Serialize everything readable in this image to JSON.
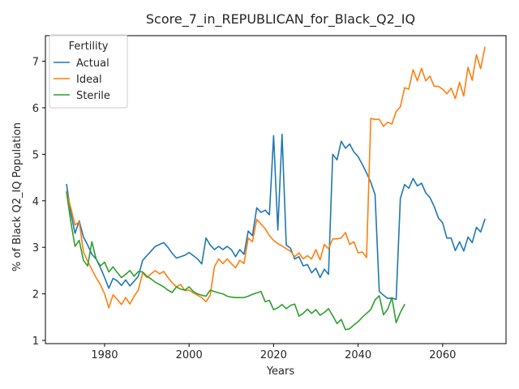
{
  "chart_data": {
    "type": "line",
    "title": "Score_7_in_REPUBLICAN_for_Black_Q2_IQ",
    "xlabel": "Years",
    "ylabel": "% of Black Q2_IQ Population",
    "xlim": [
      1966,
      2075
    ],
    "ylim": [
      0.93,
      7.55
    ],
    "xticks": [
      1980,
      2000,
      2020,
      2040,
      2060
    ],
    "yticks": [
      1,
      2,
      3,
      4,
      5,
      6,
      7
    ],
    "grid": false,
    "legend": {
      "title": "Fertility",
      "position": "top-left"
    },
    "series": [
      {
        "name": "Actual",
        "color": "#1f77b4",
        "x": [
          1971,
          1972,
          1973,
          1974,
          1975,
          1976,
          1977,
          1978,
          1979,
          1980,
          1981,
          1982,
          1983,
          1984,
          1985,
          1986,
          1987,
          1988,
          1989,
          1990,
          1991,
          1992,
          1993,
          1994,
          1995,
          1996,
          1997,
          1998,
          1999,
          2000,
          2001,
          2002,
          2003,
          2004,
          2005,
          2006,
          2007,
          2008,
          2009,
          2010,
          2011,
          2012,
          2013,
          2014,
          2015,
          2016,
          2017,
          2018,
          2019,
          2020,
          2021,
          2022,
          2023,
          2024,
          2025,
          2026,
          2027,
          2028,
          2029,
          2030,
          2031,
          2032,
          2033,
          2034,
          2035,
          2036,
          2037,
          2038,
          2039,
          2040,
          2041,
          2042,
          2043,
          2044,
          2045,
          2046,
          2047,
          2048,
          2049,
          2050,
          2051,
          2052,
          2053,
          2054,
          2055,
          2056,
          2057,
          2058,
          2059,
          2060,
          2061,
          2062,
          2063,
          2064,
          2065,
          2066,
          2067,
          2068,
          2069,
          2070
        ],
        "y": [
          4.35,
          3.75,
          3.3,
          3.57,
          3.22,
          3.05,
          2.85,
          2.75,
          2.57,
          2.35,
          2.12,
          2.33,
          2.28,
          2.18,
          2.3,
          2.17,
          2.27,
          2.38,
          2.72,
          2.82,
          2.92,
          3.02,
          3.06,
          3.1,
          3.0,
          2.87,
          2.77,
          2.8,
          2.83,
          2.89,
          2.82,
          2.75,
          2.64,
          3.2,
          3.05,
          2.95,
          3.02,
          2.95,
          3.02,
          2.95,
          2.8,
          2.95,
          2.85,
          3.35,
          3.25,
          3.85,
          3.75,
          3.8,
          3.7,
          5.4,
          3.37,
          5.43,
          3.05,
          2.98,
          2.75,
          2.8,
          2.6,
          2.63,
          2.45,
          2.55,
          2.35,
          2.53,
          2.42,
          5.0,
          4.88,
          5.28,
          5.13,
          5.22,
          5.05,
          4.95,
          4.78,
          4.6,
          4.4,
          4.13,
          2.05,
          1.97,
          1.9,
          1.91,
          1.88,
          4.05,
          4.35,
          4.27,
          4.48,
          4.32,
          4.38,
          4.17,
          4.07,
          3.88,
          3.63,
          3.53,
          3.2,
          3.2,
          2.93,
          3.12,
          2.92,
          3.22,
          3.1,
          3.43,
          3.33,
          3.6
        ]
      },
      {
        "name": "Ideal",
        "color": "#ff7f0e",
        "x": [
          1971,
          1972,
          1973,
          1974,
          1975,
          1976,
          1977,
          1978,
          1979,
          1980,
          1981,
          1982,
          1983,
          1984,
          1985,
          1986,
          1987,
          1988,
          1989,
          1990,
          1991,
          1992,
          1993,
          1994,
          1995,
          1996,
          1997,
          1998,
          1999,
          2000,
          2001,
          2002,
          2003,
          2004,
          2005,
          2006,
          2007,
          2008,
          2009,
          2010,
          2011,
          2012,
          2013,
          2014,
          2015,
          2016,
          2017,
          2018,
          2019,
          2020,
          2021,
          2022,
          2023,
          2024,
          2025,
          2026,
          2027,
          2028,
          2029,
          2030,
          2031,
          2032,
          2033,
          2034,
          2035,
          2036,
          2037,
          2038,
          2039,
          2040,
          2041,
          2042,
          2043,
          2044,
          2045,
          2046,
          2047,
          2048,
          2049,
          2050,
          2051,
          2052,
          2053,
          2054,
          2055,
          2056,
          2057,
          2058,
          2059,
          2060,
          2061,
          2062,
          2063,
          2064,
          2065,
          2066,
          2067,
          2068,
          2069,
          2070
        ],
        "y": [
          4.2,
          3.85,
          3.48,
          3.55,
          2.9,
          2.7,
          2.52,
          2.35,
          2.2,
          2.0,
          1.7,
          1.98,
          1.88,
          1.77,
          1.92,
          1.78,
          1.95,
          2.08,
          2.45,
          2.35,
          2.43,
          2.5,
          2.43,
          2.48,
          2.35,
          2.24,
          2.15,
          2.2,
          2.07,
          2.08,
          2.02,
          1.97,
          1.92,
          1.83,
          1.97,
          2.58,
          2.75,
          2.65,
          2.75,
          2.65,
          2.56,
          2.72,
          2.65,
          3.2,
          3.12,
          3.6,
          3.5,
          3.4,
          3.25,
          3.15,
          3.08,
          3.03,
          2.97,
          2.92,
          2.8,
          2.88,
          2.75,
          2.82,
          2.75,
          2.95,
          2.73,
          3.06,
          2.97,
          3.18,
          3.18,
          3.2,
          3.32,
          3.06,
          3.12,
          2.88,
          2.9,
          2.78,
          5.77,
          5.75,
          5.75,
          5.6,
          5.69,
          5.65,
          5.92,
          6.02,
          6.43,
          6.4,
          6.82,
          6.58,
          6.85,
          6.58,
          6.68,
          6.46,
          6.46,
          6.4,
          6.3,
          6.42,
          6.2,
          6.55,
          6.25,
          6.87,
          6.59,
          7.14,
          6.84,
          7.3
        ]
      },
      {
        "name": "Sterile",
        "color": "#2ca02c",
        "x": [
          1971,
          1972,
          1973,
          1974,
          1975,
          1976,
          1977,
          1978,
          1979,
          1980,
          1981,
          1982,
          1983,
          1984,
          1985,
          1986,
          1987,
          1988,
          1989,
          1990,
          1991,
          1992,
          1993,
          1994,
          1995,
          1996,
          1997,
          1998,
          1999,
          2000,
          2001,
          2002,
          2003,
          2004,
          2005,
          2006,
          2007,
          2008,
          2009,
          2010,
          2011,
          2012,
          2013,
          2014,
          2015,
          2016,
          2017,
          2018,
          2019,
          2020,
          2021,
          2022,
          2023,
          2024,
          2025,
          2026,
          2027,
          2028,
          2029,
          2030,
          2031,
          2032,
          2033,
          2034,
          2035,
          2036,
          2037,
          2038,
          2039,
          2040,
          2041,
          2042,
          2043,
          2044,
          2045,
          2046,
          2047,
          2048,
          2049,
          2050,
          2051
        ],
        "y": [
          4.18,
          3.55,
          3.02,
          3.15,
          2.72,
          2.6,
          3.12,
          2.75,
          2.6,
          2.68,
          2.47,
          2.58,
          2.46,
          2.35,
          2.42,
          2.5,
          2.38,
          2.48,
          2.47,
          2.38,
          2.32,
          2.25,
          2.2,
          2.15,
          2.08,
          2.03,
          2.15,
          2.1,
          2.08,
          2.15,
          2.05,
          2.0,
          1.97,
          1.95,
          2.08,
          2.05,
          2.02,
          2.0,
          1.95,
          1.93,
          1.92,
          1.92,
          1.92,
          1.95,
          1.99,
          2.02,
          2.05,
          1.83,
          1.86,
          1.66,
          1.7,
          1.77,
          1.68,
          1.75,
          1.78,
          1.52,
          1.58,
          1.67,
          1.58,
          1.66,
          1.54,
          1.6,
          1.68,
          1.53,
          1.36,
          1.45,
          1.23,
          1.25,
          1.33,
          1.4,
          1.5,
          1.58,
          1.66,
          1.87,
          1.96,
          1.55,
          1.67,
          1.92,
          1.38,
          1.6,
          1.77
        ]
      }
    ]
  }
}
